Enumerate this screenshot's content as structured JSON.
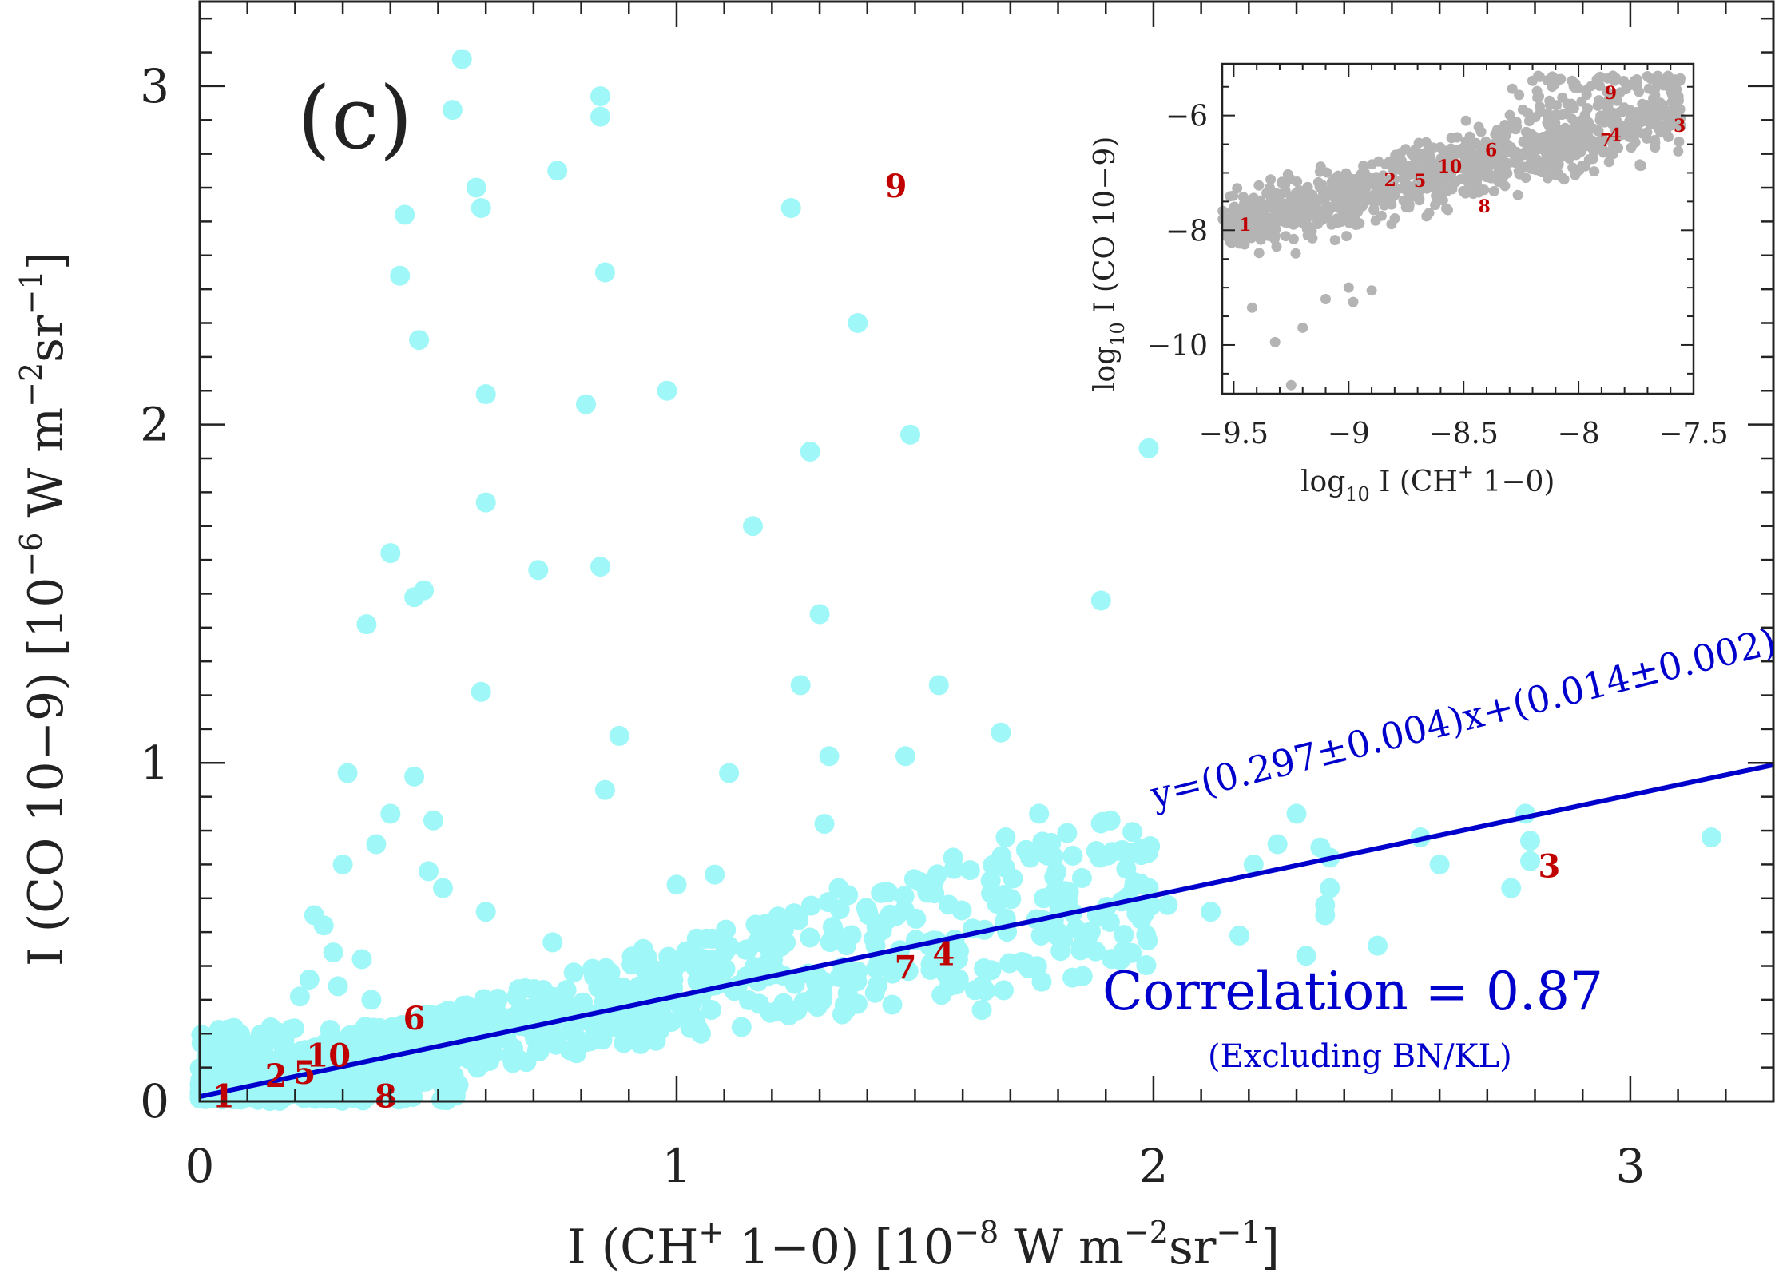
{
  "chart_data": [
    {
      "type": "scatter",
      "panel_label": "(c)",
      "xlabel": "I (CH",
      "xlabel_sup": "+",
      "xlabel_tail": " 1−0)  [10",
      "xlabel_exp": "−8",
      "xlabel_unit": " W m",
      "xlabel_unit_exp": "−2",
      "xlabel_sr": "sr",
      "xlabel_sr_exp": "−1",
      "xlabel_close": "]",
      "ylabel": "I (CO 10−9)  [10",
      "ylabel_exp": "−6",
      "ylabel_unit": " W m",
      "ylabel_unit_exp": "−2",
      "ylabel_sr": "sr",
      "ylabel_sr_exp": "−1",
      "ylabel_close": "]",
      "xlim": [
        0,
        3.3
      ],
      "ylim": [
        0,
        3.25
      ],
      "xticks": [
        "0",
        "1",
        "2",
        "3"
      ],
      "yticks": [
        "0",
        "1",
        "2",
        "3"
      ],
      "colors": {
        "points": "#9ff7f7",
        "fit": "#0000cc",
        "markers": "#c00000",
        "axes": "#222222"
      },
      "fit": {
        "slope": 0.297,
        "intercept": 0.014,
        "label": "y=(0.297±0.004)x+(0.014±0.002)"
      },
      "correlation_label": "Correlation = 0.87",
      "correlation_note": "(Excluding BN/KL)",
      "series": [
        {
          "name": "positions",
          "points": [
            [
              0.55,
              3.08
            ],
            [
              0.53,
              2.93
            ],
            [
              0.43,
              2.62
            ],
            [
              0.42,
              2.44
            ],
            [
              0.46,
              2.25
            ],
            [
              0.58,
              2.7
            ],
            [
              0.59,
              2.64
            ],
            [
              0.84,
              2.97
            ],
            [
              0.84,
              2.91
            ],
            [
              0.85,
              2.45
            ],
            [
              0.75,
              2.75
            ],
            [
              1.24,
              2.64
            ],
            [
              1.38,
              2.3
            ],
            [
              0.98,
              2.1
            ],
            [
              0.6,
              2.09
            ],
            [
              0.81,
              2.06
            ],
            [
              1.49,
              1.97
            ],
            [
              1.28,
              1.92
            ],
            [
              0.6,
              1.77
            ],
            [
              1.16,
              1.7
            ],
            [
              0.4,
              1.62
            ],
            [
              0.71,
              1.57
            ],
            [
              0.84,
              1.58
            ],
            [
              0.47,
              1.51
            ],
            [
              0.45,
              1.49
            ],
            [
              1.89,
              1.48
            ],
            [
              0.35,
              1.41
            ],
            [
              1.3,
              1.44
            ],
            [
              0.59,
              1.21
            ],
            [
              1.26,
              1.23
            ],
            [
              1.55,
              1.23
            ],
            [
              0.88,
              1.08
            ],
            [
              1.68,
              1.09
            ],
            [
              1.11,
              0.97
            ],
            [
              1.32,
              1.02
            ],
            [
              1.48,
              1.02
            ],
            [
              0.31,
              0.97
            ],
            [
              0.45,
              0.96
            ],
            [
              0.85,
              0.92
            ],
            [
              0.4,
              0.85
            ],
            [
              0.49,
              0.83
            ],
            [
              1.31,
              0.82
            ],
            [
              1.76,
              0.85
            ],
            [
              1.91,
              0.83
            ],
            [
              2.3,
              0.85
            ],
            [
              0.37,
              0.76
            ],
            [
              0.3,
              0.7
            ],
            [
              1.69,
              0.78
            ],
            [
              1.58,
              0.72
            ],
            [
              1.88,
              0.74
            ],
            [
              1.99,
              1.93
            ],
            [
              2.21,
              0.7
            ],
            [
              2.26,
              0.76
            ],
            [
              2.35,
              0.75
            ],
            [
              2.56,
              0.78
            ],
            [
              2.78,
              0.85
            ],
            [
              2.79,
              0.77
            ],
            [
              3.17,
              0.78
            ],
            [
              2.37,
              0.72
            ],
            [
              2.6,
              0.7
            ],
            [
              2.79,
              0.71
            ],
            [
              0.48,
              0.68
            ],
            [
              0.51,
              0.63
            ],
            [
              1.0,
              0.64
            ],
            [
              1.08,
              0.67
            ],
            [
              1.34,
              0.63
            ],
            [
              1.54,
              0.65
            ],
            [
              1.99,
              0.63
            ],
            [
              2.03,
              0.58
            ],
            [
              2.12,
              0.56
            ],
            [
              2.37,
              0.63
            ],
            [
              2.36,
              0.58
            ],
            [
              2.36,
              0.55
            ],
            [
              2.75,
              0.63
            ],
            [
              0.6,
              0.56
            ],
            [
              1.4,
              0.56
            ],
            [
              1.77,
              0.6
            ],
            [
              1.82,
              0.59
            ],
            [
              1.85,
              0.66
            ],
            [
              2.18,
              0.49
            ],
            [
              2.32,
              0.43
            ],
            [
              2.47,
              0.46
            ],
            [
              1.64,
              0.27
            ],
            [
              0.24,
              0.55
            ],
            [
              0.26,
              0.52
            ],
            [
              0.28,
              0.44
            ],
            [
              0.34,
              0.42
            ],
            [
              0.74,
              0.47
            ],
            [
              0.93,
              0.45
            ],
            [
              1.73,
              0.41
            ],
            [
              1.85,
              0.46
            ],
            [
              1.8,
              0.5
            ],
            [
              0.23,
              0.36
            ],
            [
              0.21,
              0.31
            ],
            [
              0.29,
              0.34
            ],
            [
              0.36,
              0.3
            ]
          ]
        },
        {
          "name": "labelled positions",
          "points": [
            {
              "label": "1",
              "x": 0.05,
              "y": 0.02
            },
            {
              "label": "2",
              "x": 0.16,
              "y": 0.08
            },
            {
              "label": "5",
              "x": 0.22,
              "y": 0.09
            },
            {
              "label": "10",
              "x": 0.27,
              "y": 0.14
            },
            {
              "label": "8",
              "x": 0.39,
              "y": 0.02
            },
            {
              "label": "6",
              "x": 0.45,
              "y": 0.25
            },
            {
              "label": "7",
              "x": 1.48,
              "y": 0.4
            },
            {
              "label": "4",
              "x": 1.56,
              "y": 0.44
            },
            {
              "label": "9",
              "x": 1.46,
              "y": 2.71
            },
            {
              "label": "3",
              "x": 2.83,
              "y": 0.7
            }
          ]
        }
      ]
    },
    {
      "type": "scatter",
      "inset": true,
      "xlabel": "log",
      "xlabel_sub": "10",
      "xlabel_tail": " I (CH",
      "xlabel_sup": "+",
      "xlabel_end": " 1−0)",
      "ylabel": "log",
      "ylabel_sub": "10",
      "ylabel_tail": " I (CO 10−9)",
      "xlim": [
        -9.55,
        -7.5
      ],
      "ylim": [
        -10.85,
        -5.1
      ],
      "xticks": [
        "−9.5",
        "−9",
        "−8.5",
        "−8",
        "−7.5"
      ],
      "yticks": [
        "−10",
        "−8",
        "−6"
      ],
      "colors": {
        "points": "#b4b4b4",
        "markers": "#c00000"
      },
      "series": [
        {
          "name": "log positions",
          "points": [
            [
              -9.25,
              -10.7
            ],
            [
              -9.32,
              -9.95
            ],
            [
              -9.2,
              -9.7
            ],
            [
              -9.42,
              -9.35
            ],
            [
              -9.1,
              -9.2
            ],
            [
              -8.9,
              -9.05
            ],
            [
              -9.0,
              -9.0
            ],
            [
              -8.98,
              -9.25
            ],
            [
              -7.85,
              -5.95
            ],
            [
              -8.3,
              -6.6
            ],
            [
              -7.6,
              -6.05
            ],
            [
              -8.75,
              -7.6
            ]
          ]
        },
        {
          "name": "labelled log positions",
          "points": [
            {
              "label": "1",
              "x": -9.45,
              "y": -7.9
            },
            {
              "label": "2",
              "x": -8.82,
              "y": -7.12
            },
            {
              "label": "5",
              "x": -8.69,
              "y": -7.13
            },
            {
              "label": "10",
              "x": -8.56,
              "y": -6.88
            },
            {
              "label": "6",
              "x": -8.38,
              "y": -6.6
            },
            {
              "label": "8",
              "x": -8.41,
              "y": -7.58
            },
            {
              "label": "7",
              "x": -7.88,
              "y": -6.42
            },
            {
              "label": "4",
              "x": -7.84,
              "y": -6.33
            },
            {
              "label": "9",
              "x": -7.86,
              "y": -5.6
            },
            {
              "label": "3",
              "x": -7.56,
              "y": -6.17
            }
          ]
        }
      ]
    }
  ]
}
